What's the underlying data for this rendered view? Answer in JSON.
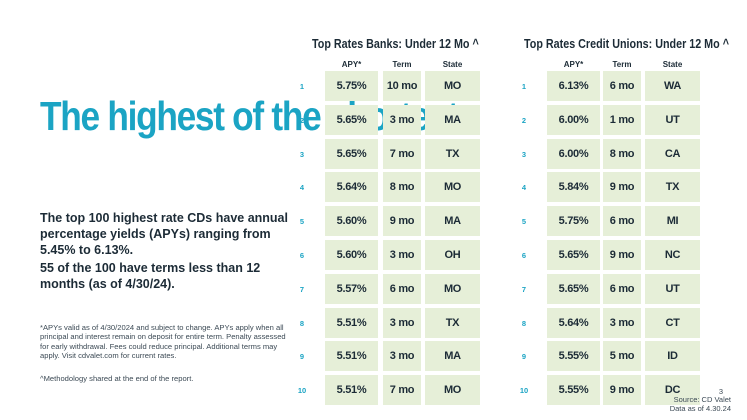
{
  "headline": "The highest of the shortest.",
  "paragraph1": "The top 100 highest rate CDs have annual percentage  yields (APYs) ranging from 5.45% to 6.13%.",
  "paragraph2": "55 of the 100 have terms less than 12 months (as of 4/30/24).",
  "footnote": "*APYs valid as of 4/30/2024 and subject to change. APYs apply when all principal and interest remain on deposit for entire term. Penalty assessed for early withdrawal. Fees could reduce principal. Additional terms may apply. Visit cdvalet.com for current rates.",
  "methodology": "^Methodology shared at the end of the report.",
  "banks": {
    "title": "Top Rates Banks: Under 12 Mo ^",
    "headers": [
      "APY*",
      "Term",
      "State"
    ],
    "rows": [
      {
        "rank": "1",
        "apy": "5.75%",
        "term": "10 mo",
        "state": "MO"
      },
      {
        "rank": "2",
        "apy": "5.65%",
        "term": "3 mo",
        "state": "MA"
      },
      {
        "rank": "3",
        "apy": "5.65%",
        "term": "7 mo",
        "state": "TX"
      },
      {
        "rank": "4",
        "apy": "5.64%",
        "term": "8 mo",
        "state": "MO"
      },
      {
        "rank": "5",
        "apy": "5.60%",
        "term": "9 mo",
        "state": "MA"
      },
      {
        "rank": "6",
        "apy": "5.60%",
        "term": "3 mo",
        "state": "OH"
      },
      {
        "rank": "7",
        "apy": "5.57%",
        "term": "6 mo",
        "state": "MO"
      },
      {
        "rank": "8",
        "apy": "5.51%",
        "term": "3 mo",
        "state": "TX"
      },
      {
        "rank": "9",
        "apy": "5.51%",
        "term": "3 mo",
        "state": "MA"
      },
      {
        "rank": "10",
        "apy": "5.51%",
        "term": "7 mo",
        "state": "MO"
      }
    ]
  },
  "credit_unions": {
    "title": "Top Rates Credit Unions: Under 12 Mo ^",
    "headers": [
      "APY*",
      "Term",
      "State"
    ],
    "rows": [
      {
        "rank": "1",
        "apy": "6.13%",
        "term": "6 mo",
        "state": "WA"
      },
      {
        "rank": "2",
        "apy": "6.00%",
        "term": "1 mo",
        "state": "UT"
      },
      {
        "rank": "3",
        "apy": "6.00%",
        "term": "8 mo",
        "state": "CA"
      },
      {
        "rank": "4",
        "apy": "5.84%",
        "term": "9 mo",
        "state": "TX"
      },
      {
        "rank": "5",
        "apy": "5.75%",
        "term": "6 mo",
        "state": "MI"
      },
      {
        "rank": "6",
        "apy": "5.65%",
        "term": "9 mo",
        "state": "NC"
      },
      {
        "rank": "7",
        "apy": "5.65%",
        "term": "6 mo",
        "state": "UT"
      },
      {
        "rank": "8",
        "apy": "5.64%",
        "term": "3 mo",
        "state": "CT"
      },
      {
        "rank": "9",
        "apy": "5.55%",
        "term": "5 mo",
        "state": "ID"
      },
      {
        "rank": "10",
        "apy": "5.55%",
        "term": "9 mo",
        "state": "DC"
      }
    ]
  },
  "page_number": "3",
  "source": "Source: CD Valet",
  "data_as_of": "Data as of 4.30.24",
  "colors": {
    "accent": "#1ba4c4",
    "cell_bg": "#e6efd8",
    "text": "#1c2b36"
  }
}
